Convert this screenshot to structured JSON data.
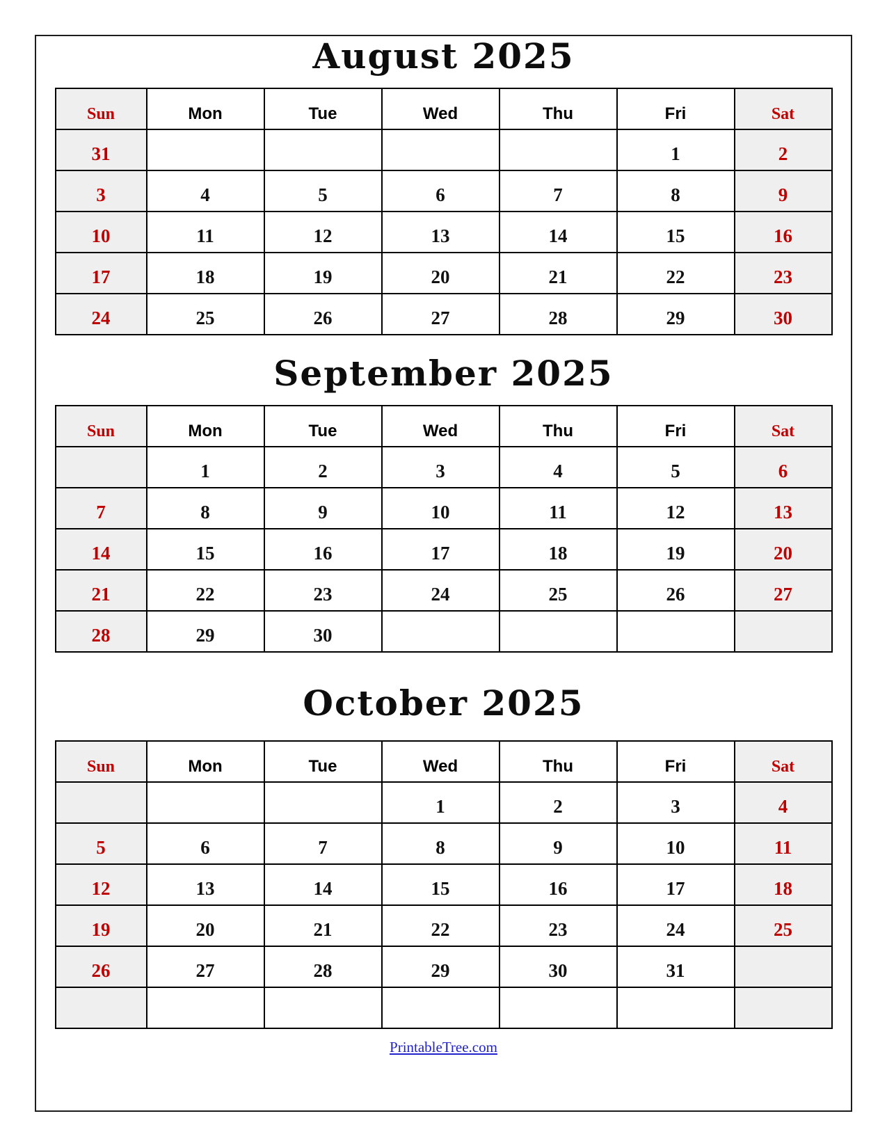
{
  "colors": {
    "accent_red": "#c00000",
    "weekend_bg": "#f0efef",
    "link_blue": "#2222cc"
  },
  "day_headers": [
    "Sun",
    "Mon",
    "Tue",
    "Wed",
    "Thu",
    "Fri",
    "Sat"
  ],
  "months": [
    {
      "title": "August 2025",
      "weeks": [
        [
          "31",
          "",
          "",
          "",
          "",
          "1",
          "2"
        ],
        [
          "3",
          "4",
          "5",
          "6",
          "7",
          "8",
          "9"
        ],
        [
          "10",
          "11",
          "12",
          "13",
          "14",
          "15",
          "16"
        ],
        [
          "17",
          "18",
          "19",
          "20",
          "21",
          "22",
          "23"
        ],
        [
          "24",
          "25",
          "26",
          "27",
          "28",
          "29",
          "30"
        ]
      ]
    },
    {
      "title": "September 2025",
      "weeks": [
        [
          "",
          "1",
          "2",
          "3",
          "4",
          "5",
          "6"
        ],
        [
          "7",
          "8",
          "9",
          "10",
          "11",
          "12",
          "13"
        ],
        [
          "14",
          "15",
          "16",
          "17",
          "18",
          "19",
          "20"
        ],
        [
          "21",
          "22",
          "23",
          "24",
          "25",
          "26",
          "27"
        ],
        [
          "28",
          "29",
          "30",
          "",
          "",
          "",
          ""
        ]
      ]
    },
    {
      "title": "October 2025",
      "weeks": [
        [
          "",
          "",
          "",
          "1",
          "2",
          "3",
          "4"
        ],
        [
          "5",
          "6",
          "7",
          "8",
          "9",
          "10",
          "11"
        ],
        [
          "12",
          "13",
          "14",
          "15",
          "16",
          "17",
          "18"
        ],
        [
          "19",
          "20",
          "21",
          "22",
          "23",
          "24",
          "25"
        ],
        [
          "26",
          "27",
          "28",
          "29",
          "30",
          "31",
          ""
        ],
        [
          "",
          "",
          "",
          "",
          "",
          "",
          ""
        ]
      ]
    }
  ],
  "footer": {
    "link_text": "PrintableTree.com"
  }
}
